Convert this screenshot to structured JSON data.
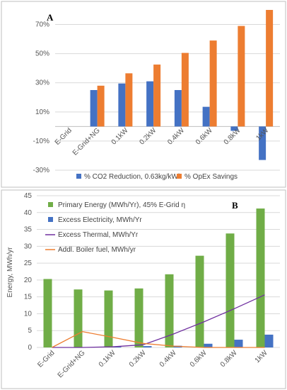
{
  "chart_data": [
    {
      "type": "bar",
      "panel": "A",
      "categories": [
        "E-Grid",
        "E-Grid+NG",
        "0.1kW",
        "0.2kW",
        "0.4kW",
        "0.6kW",
        "0.8kW",
        "1kW"
      ],
      "series": [
        {
          "name": "% CO2 Reduction, 0.63kg/kWh",
          "color": "#4472C4",
          "values": [
            0,
            25,
            29.5,
            31,
            25,
            13.5,
            -3,
            -23
          ]
        },
        {
          "name": "% OpEx Savings",
          "color": "#ED7D31",
          "values": [
            0,
            28,
            36.5,
            42.5,
            50.5,
            59,
            69,
            80
          ]
        }
      ],
      "yticks": [
        "-30%",
        "-10%",
        "10%",
        "30%",
        "50%",
        "70%"
      ],
      "ylim": [
        -30,
        80
      ],
      "grid": true,
      "legend": "bottom"
    },
    {
      "type": "bar+line",
      "panel": "B",
      "categories": [
        "E-Grid",
        "E-Grid+NG",
        "0.1kW",
        "0.2kW",
        "0.4kW",
        "0.6kW",
        "0.8kW",
        "1kW"
      ],
      "series": [
        {
          "name": "Primary Energy (MWh/Yr), 45% E-Grid η",
          "kind": "bar",
          "color": "#70AD47",
          "values": [
            20.3,
            17.2,
            16.9,
            17.5,
            21.7,
            27.2,
            33.8,
            41.2
          ]
        },
        {
          "name": "Excess Electricity, MWh/Yr",
          "kind": "bar",
          "color": "#4472C4",
          "values": [
            0,
            0,
            0.3,
            0.4,
            0.5,
            1.1,
            2.3,
            3.8
          ]
        },
        {
          "name": "Excess Thermal, MWh/Yr",
          "kind": "line",
          "color": "#7030A0",
          "values": [
            0,
            0,
            0.2,
            0.8,
            4.0,
            7.6,
            11.5,
            15.6
          ]
        },
        {
          "name": "Addl. Boiler fuel, MWh/yr",
          "kind": "line",
          "color": "#ED7D31",
          "values": [
            0,
            4.7,
            3.0,
            1.2,
            0.4,
            0,
            0,
            0
          ]
        }
      ],
      "yticks": [
        "0",
        "5",
        "10",
        "15",
        "20",
        "25",
        "30",
        "35",
        "40",
        "45"
      ],
      "ylabel": "Energy, MWh/yr",
      "ylim": [
        0,
        45
      ],
      "grid": true,
      "legend": "top-left"
    }
  ]
}
